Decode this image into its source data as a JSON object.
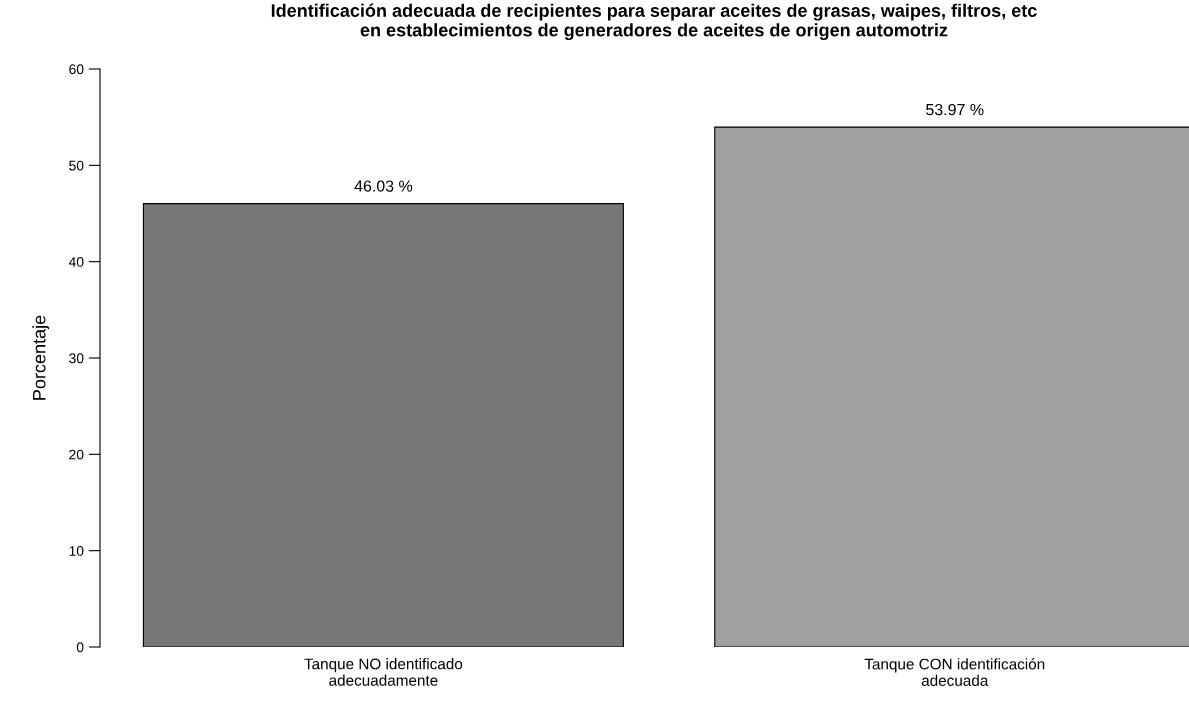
{
  "chart_data": {
    "type": "bar",
    "title": "Identificación adecuada de recipientes para separar aceites de grasas, waipes, filtros, etc\nen establecimientos de generadores de aceites de origen automotriz",
    "ylabel": "Porcentaje",
    "categories": [
      "Tanque NO identificado\nadecuadamente",
      "Tanque CON identificación\nadecuada"
    ],
    "values": [
      46.03,
      53.97
    ],
    "colors": [
      "#777777",
      "#a0a0a0"
    ],
    "value_labels": [
      "46.03 %",
      "53.97 %"
    ],
    "ylim": [
      0,
      60
    ],
    "yticks": [
      0,
      10,
      20,
      30,
      40,
      50,
      60
    ],
    "grid": false,
    "legend": false
  }
}
